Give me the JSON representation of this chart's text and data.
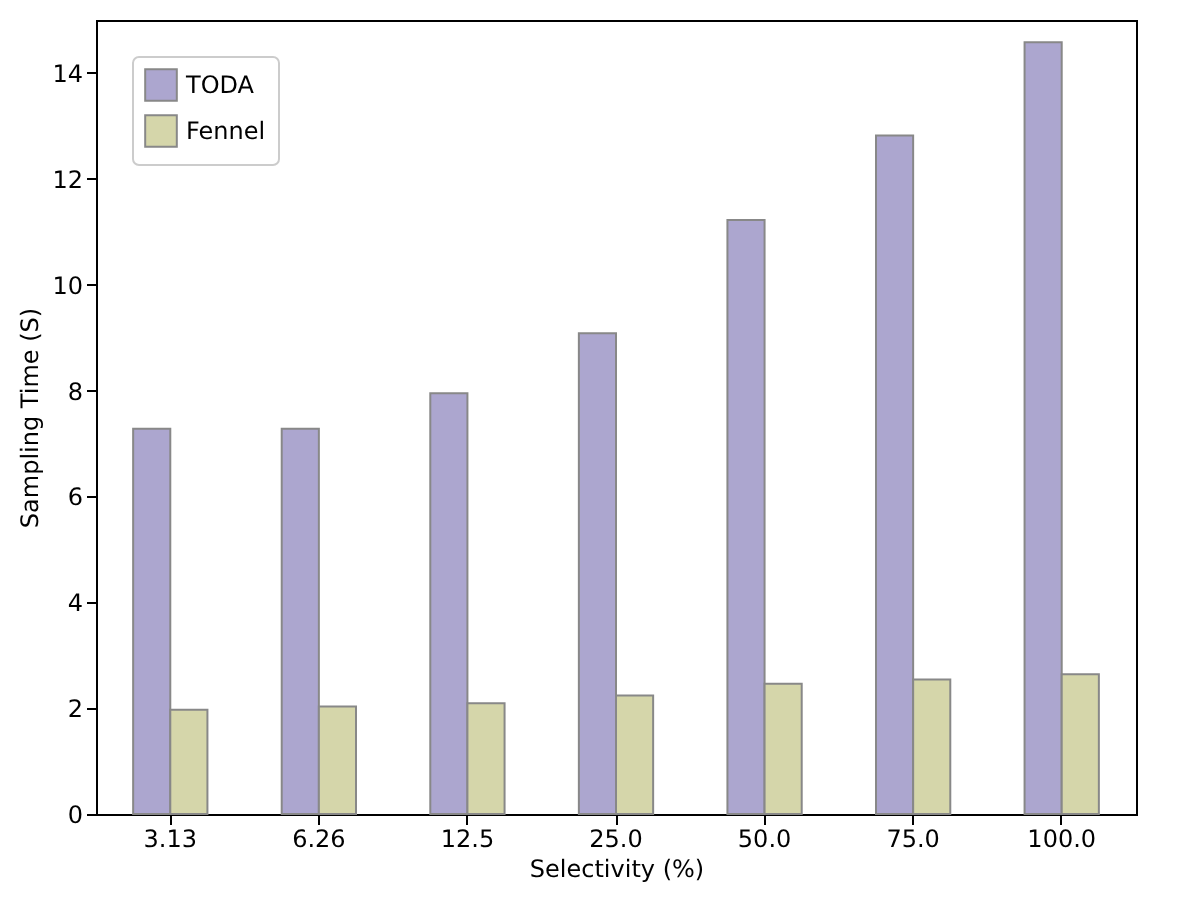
{
  "chart_data": {
    "type": "bar",
    "xlabel": "Selectivity (%)",
    "ylabel": "Sampling Time (S)",
    "categories": [
      "3.13",
      "6.26",
      "12.5",
      "25.0",
      "50.0",
      "75.0",
      "100.0"
    ],
    "series": [
      {
        "name": "TODA",
        "color": "#aca6cf",
        "values": [
          7.28,
          7.28,
          7.95,
          9.08,
          11.22,
          12.82,
          14.58
        ]
      },
      {
        "name": "Fennel",
        "color": "#d5d6aa",
        "values": [
          1.97,
          2.03,
          2.09,
          2.24,
          2.46,
          2.54,
          2.64
        ]
      }
    ],
    "ylim": [
      0,
      15
    ],
    "yticks": [
      0,
      2,
      4,
      6,
      8,
      10,
      12,
      14
    ],
    "grid": false,
    "legend": "top left"
  }
}
